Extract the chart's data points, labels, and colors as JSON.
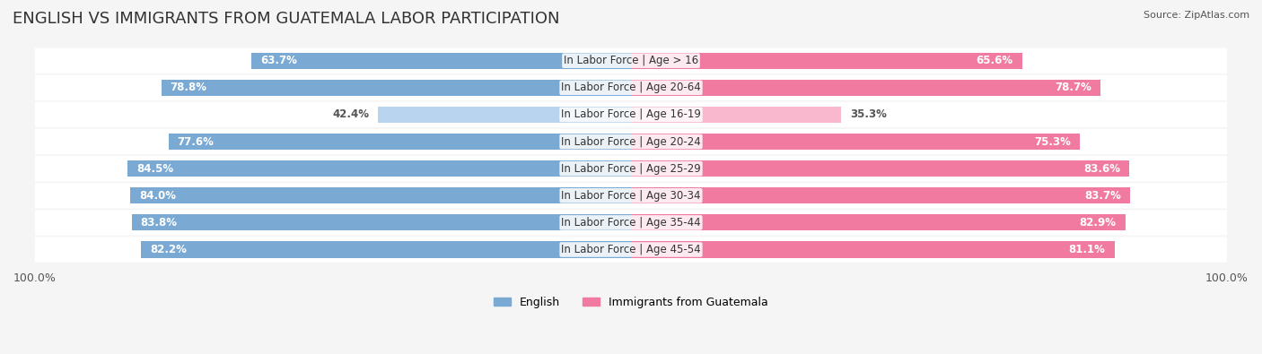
{
  "title": "ENGLISH VS IMMIGRANTS FROM GUATEMALA LABOR PARTICIPATION",
  "source": "Source: ZipAtlas.com",
  "categories": [
    "In Labor Force | Age > 16",
    "In Labor Force | Age 20-64",
    "In Labor Force | Age 16-19",
    "In Labor Force | Age 20-24",
    "In Labor Force | Age 25-29",
    "In Labor Force | Age 30-34",
    "In Labor Force | Age 35-44",
    "In Labor Force | Age 45-54"
  ],
  "english_values": [
    63.7,
    78.8,
    42.4,
    77.6,
    84.5,
    84.0,
    83.8,
    82.2
  ],
  "immigrant_values": [
    65.6,
    78.7,
    35.3,
    75.3,
    83.6,
    83.7,
    82.9,
    81.1
  ],
  "english_color": "#7aaad4",
  "immigrant_color": "#f07aa0",
  "english_color_light": "#b8d4ee",
  "immigrant_color_light": "#f9b8ce",
  "background_color": "#f5f5f5",
  "row_bg_color": "#ebebeb",
  "max_value": 100.0,
  "title_fontsize": 13,
  "label_fontsize": 8.5,
  "value_fontsize": 8.5
}
